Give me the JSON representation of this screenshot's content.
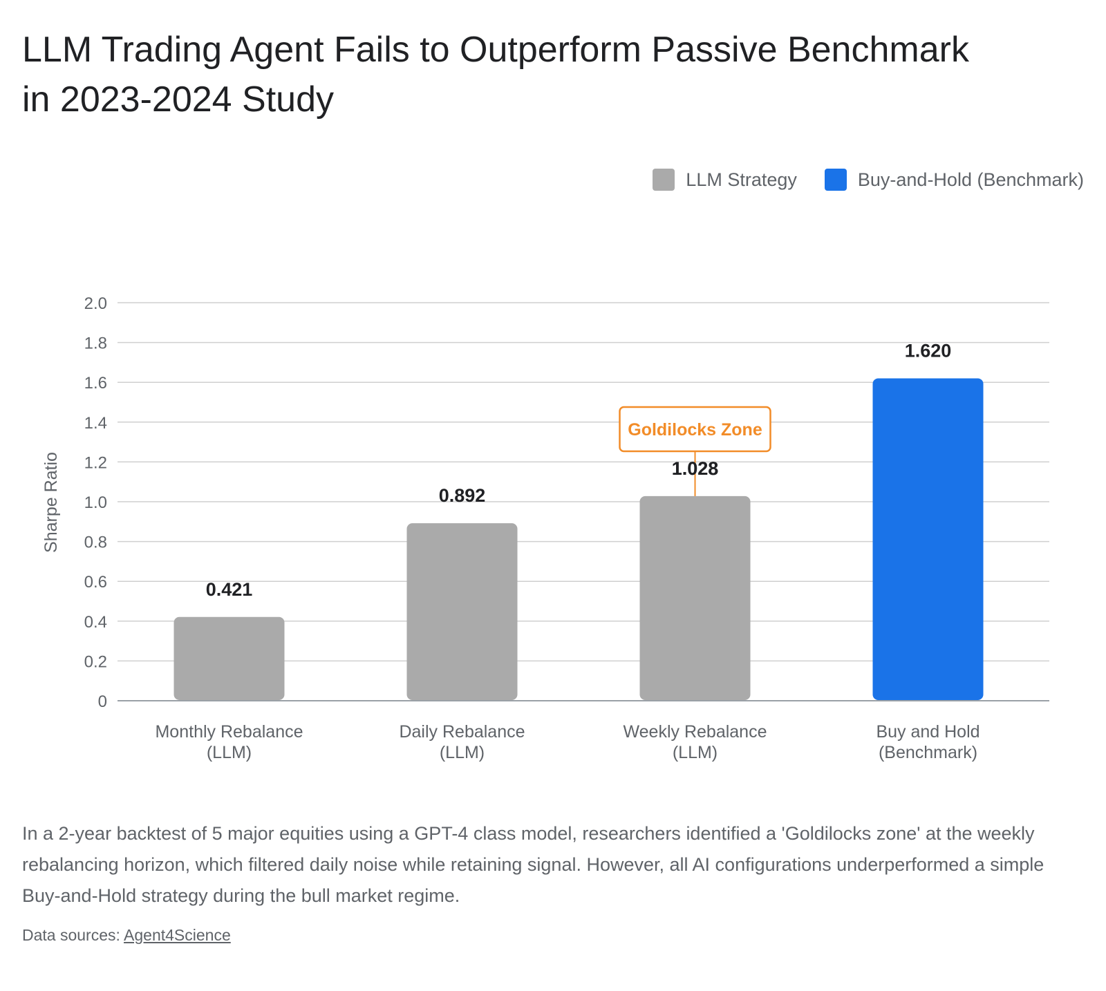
{
  "title": "LLM Trading Agent Fails to Outperform Passive Benchmark in 2023-2024 Study",
  "description": "In a 2-year backtest of 5 major equities using a GPT-4 class model, researchers identified a 'Goldilocks zone' at the weekly rebalancing horizon, which filtered daily noise while retaining signal. However, all AI configurations underperformed a simple Buy-and-Hold strategy during the bull market regime.",
  "sources": {
    "label": "Data sources:",
    "link_text": "Agent4Science"
  },
  "legend": [
    {
      "label": "LLM Strategy",
      "color": "#aaaaaa"
    },
    {
      "label": "Buy-and-Hold (Benchmark)",
      "color": "#1a73e8"
    }
  ],
  "chart_data": {
    "type": "bar",
    "categories": [
      [
        "Monthly Rebalance",
        "(LLM)"
      ],
      [
        "Daily Rebalance",
        "(LLM)"
      ],
      [
        "Weekly Rebalance",
        "(LLM)"
      ],
      [
        "Buy and Hold",
        "(Benchmark)"
      ]
    ],
    "values": [
      0.421,
      0.892,
      1.028,
      1.62
    ],
    "value_labels": [
      "0.421",
      "0.892",
      "1.028",
      "1.620"
    ],
    "bar_colors": [
      "#aaaaaa",
      "#aaaaaa",
      "#aaaaaa",
      "#1a73e8"
    ],
    "xlabel": "",
    "ylabel": "Sharpe Ratio",
    "ylim": [
      0,
      2.0
    ],
    "yticks": [
      "0",
      "0.2",
      "0.4",
      "0.6",
      "0.8",
      "1.0",
      "1.2",
      "1.4",
      "1.6",
      "1.8",
      "2.0"
    ],
    "grid": true,
    "legend_position": "top-right",
    "annotation": {
      "text": "Goldilocks Zone",
      "category_index": 2,
      "color": "#f28c28"
    }
  }
}
